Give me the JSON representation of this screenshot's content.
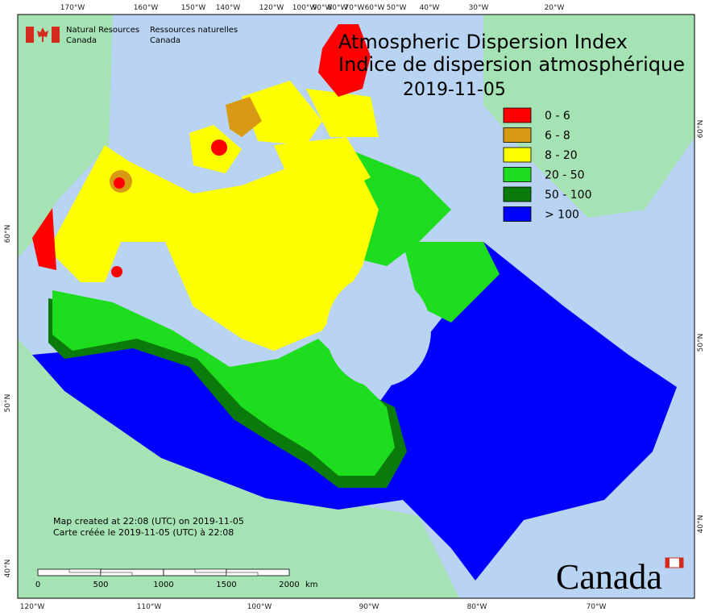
{
  "header": {
    "agency_en_line1": "Natural Resources",
    "agency_en_line2": "Canada",
    "agency_fr_line1": "Ressources naturelles",
    "agency_fr_line2": "Canada"
  },
  "title": {
    "line1": "Atmospheric Dispersion Index",
    "line2": "Indice de dispersion atmosphérique",
    "date": "2019-11-05"
  },
  "legend": [
    {
      "label": "0 - 6",
      "color": "#ff0000"
    },
    {
      "label": "6 - 8",
      "color": "#d89a14"
    },
    {
      "label": "8 - 20",
      "color": "#ffff00"
    },
    {
      "label": "20 - 50",
      "color": "#1edc1e"
    },
    {
      "label": "50 - 100",
      "color": "#0a7a0a"
    },
    {
      "label": "> 100",
      "color": "#0000ff"
    }
  ],
  "graticule": {
    "top": [
      "170°W",
      "160°W",
      "150°W",
      "140°W",
      "120°W",
      "100°W",
      "90°W",
      "80°W",
      "70°W",
      "60°W",
      "50°W",
      "40°W",
      "30°W",
      "20°W"
    ],
    "bottom": [
      "120°W",
      "110°W",
      "100°W",
      "90°W",
      "80°W",
      "70°W"
    ],
    "left": [
      "60°N",
      "50°N",
      "40°N"
    ],
    "right": [
      "60°N",
      "50°N",
      "40°N"
    ]
  },
  "footer": {
    "created_en": "Map created at 22:08 (UTC) on 2019-11-05",
    "created_fr": "Carte créée le 2019-11-05 (UTC) à 22:08"
  },
  "scale_bar": {
    "labels": [
      "0",
      "500",
      "1000",
      "1500",
      "2000"
    ],
    "unit": "km"
  },
  "wordmark": "Canada"
}
